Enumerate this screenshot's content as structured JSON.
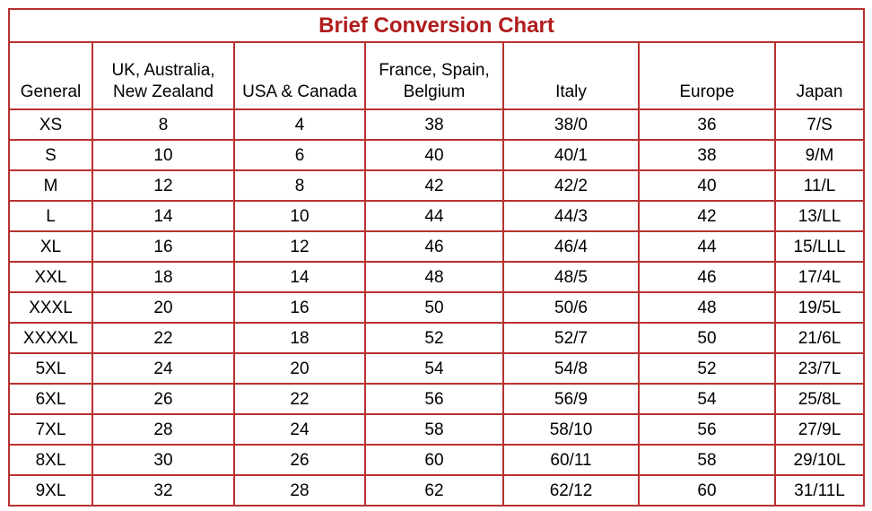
{
  "title": "Brief Conversion Chart",
  "headers": [
    [
      "General"
    ],
    [
      "UK, Australia,",
      "New Zealand"
    ],
    [
      "USA & Canada"
    ],
    [
      "France, Spain,",
      "Belgium"
    ],
    [
      "Italy"
    ],
    [
      "Europe"
    ],
    [
      "Japan"
    ]
  ],
  "rows": [
    [
      "XS",
      "8",
      "4",
      "38",
      "38/0",
      "36",
      "7/S"
    ],
    [
      "S",
      "10",
      "6",
      "40",
      "40/1",
      "38",
      "9/M"
    ],
    [
      "M",
      "12",
      "8",
      "42",
      "42/2",
      "40",
      "11/L"
    ],
    [
      "L",
      "14",
      "10",
      "44",
      "44/3",
      "42",
      "13/LL"
    ],
    [
      "XL",
      "16",
      "12",
      "46",
      "46/4",
      "44",
      "15/LLL"
    ],
    [
      "XXL",
      "18",
      "14",
      "48",
      "48/5",
      "46",
      "17/4L"
    ],
    [
      "XXXL",
      "20",
      "16",
      "50",
      "50/6",
      "48",
      "19/5L"
    ],
    [
      "XXXXL",
      "22",
      "18",
      "52",
      "52/7",
      "50",
      "21/6L"
    ],
    [
      "5XL",
      "24",
      "20",
      "54",
      "54/8",
      "52",
      "23/7L"
    ],
    [
      "6XL",
      "26",
      "22",
      "56",
      "56/9",
      "54",
      "25/8L"
    ],
    [
      "7XL",
      "28",
      "24",
      "58",
      "58/10",
      "56",
      "27/9L"
    ],
    [
      "8XL",
      "30",
      "26",
      "60",
      "60/11",
      "58",
      "29/10L"
    ],
    [
      "9XL",
      "32",
      "28",
      "62",
      "62/12",
      "60",
      "31/11L"
    ]
  ]
}
